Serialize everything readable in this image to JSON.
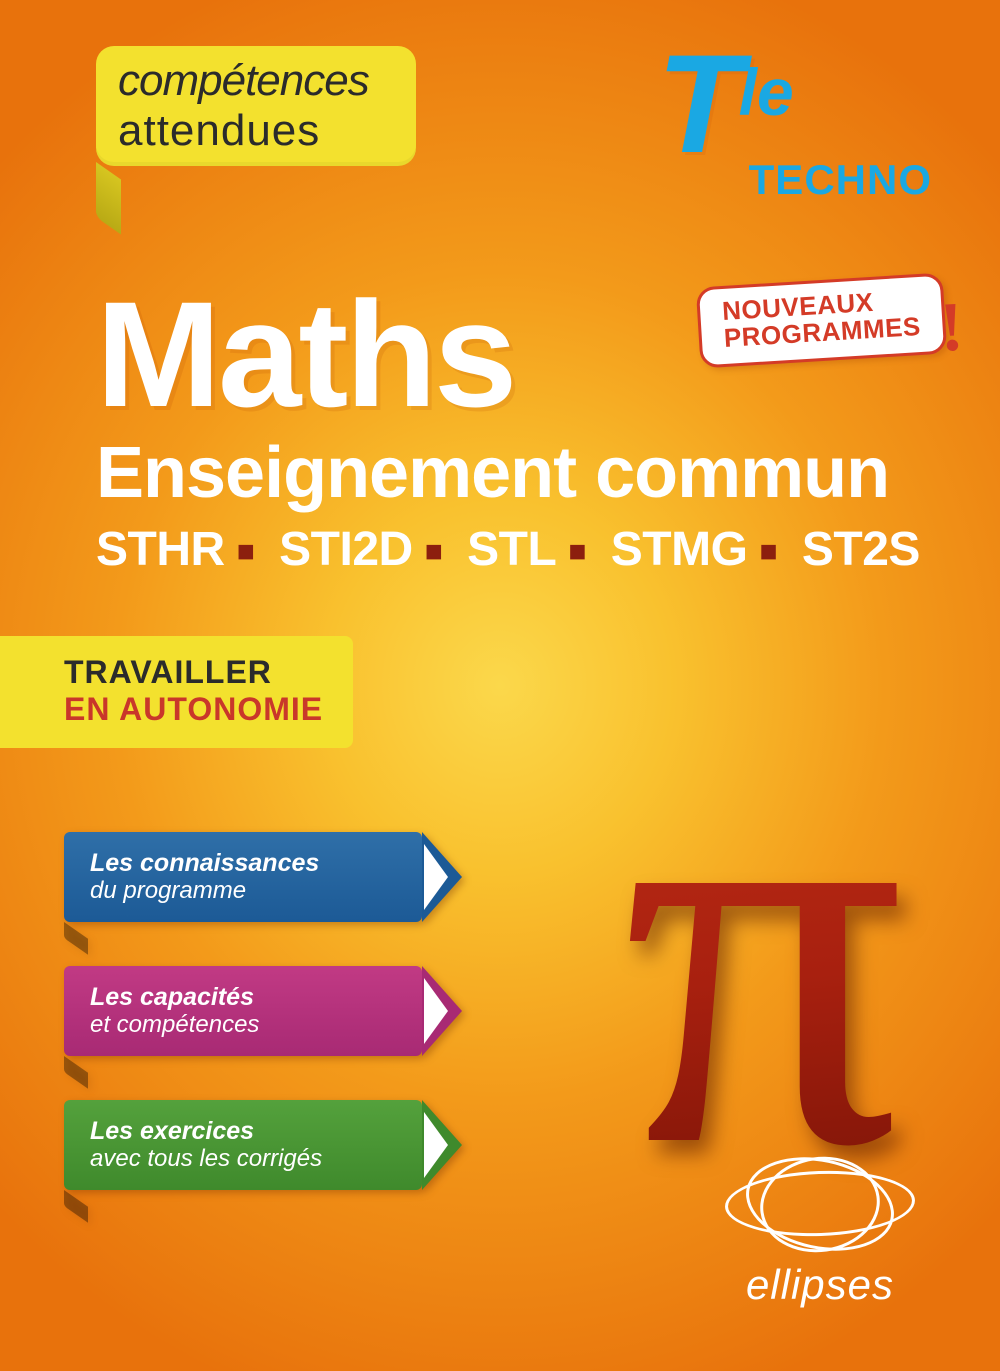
{
  "colors": {
    "bg_center": "#fbd84b",
    "bg_outer": "#e8720c",
    "tab_bg": "#f3e12e",
    "tab_text": "#2b2b2b",
    "level_color": "#1aa8e3",
    "pill_border": "#d43b27",
    "pill_text": "#d43b27",
    "title_color": "#ffffff",
    "tracks_sep_color": "#8c1f0e",
    "auto_bg": "#f3e12e",
    "auto_line1_color": "#2b2b2b",
    "auto_line2_color": "#c9372a",
    "ribbon_blue": "#1c5a96",
    "ribbon_pink": "#a82a74",
    "ribbon_green": "#3f8a2c",
    "pi_top": "#c12f17",
    "pi_bottom": "#7c1407",
    "logo_color": "#ffffff"
  },
  "tab": {
    "line1": "compétences",
    "line2": "attendues"
  },
  "level": {
    "t": "T",
    "le": "le",
    "techno": "TECHNO"
  },
  "pill": {
    "line1": "NOUVEAUX",
    "line2": "PROGRAMMES",
    "bang": "!"
  },
  "title": "Maths",
  "subtitle": "Enseignement commun",
  "tracks": {
    "items": [
      "STHR",
      "STI2D",
      "STL",
      "STMG",
      "ST2S"
    ],
    "sep": "■"
  },
  "auto": {
    "line1": "TRAVAILLER",
    "line2": "EN AUTONOMIE"
  },
  "ribbons": [
    {
      "color": "blue",
      "line1": "Les connaissances",
      "line2": "du programme"
    },
    {
      "color": "pink",
      "line1": "Les capacités",
      "line2": "et compétences"
    },
    {
      "color": "green",
      "line1": "Les exercices",
      "line2": "avec tous les corrigés"
    }
  ],
  "pi": "π",
  "logo": "ellipses"
}
